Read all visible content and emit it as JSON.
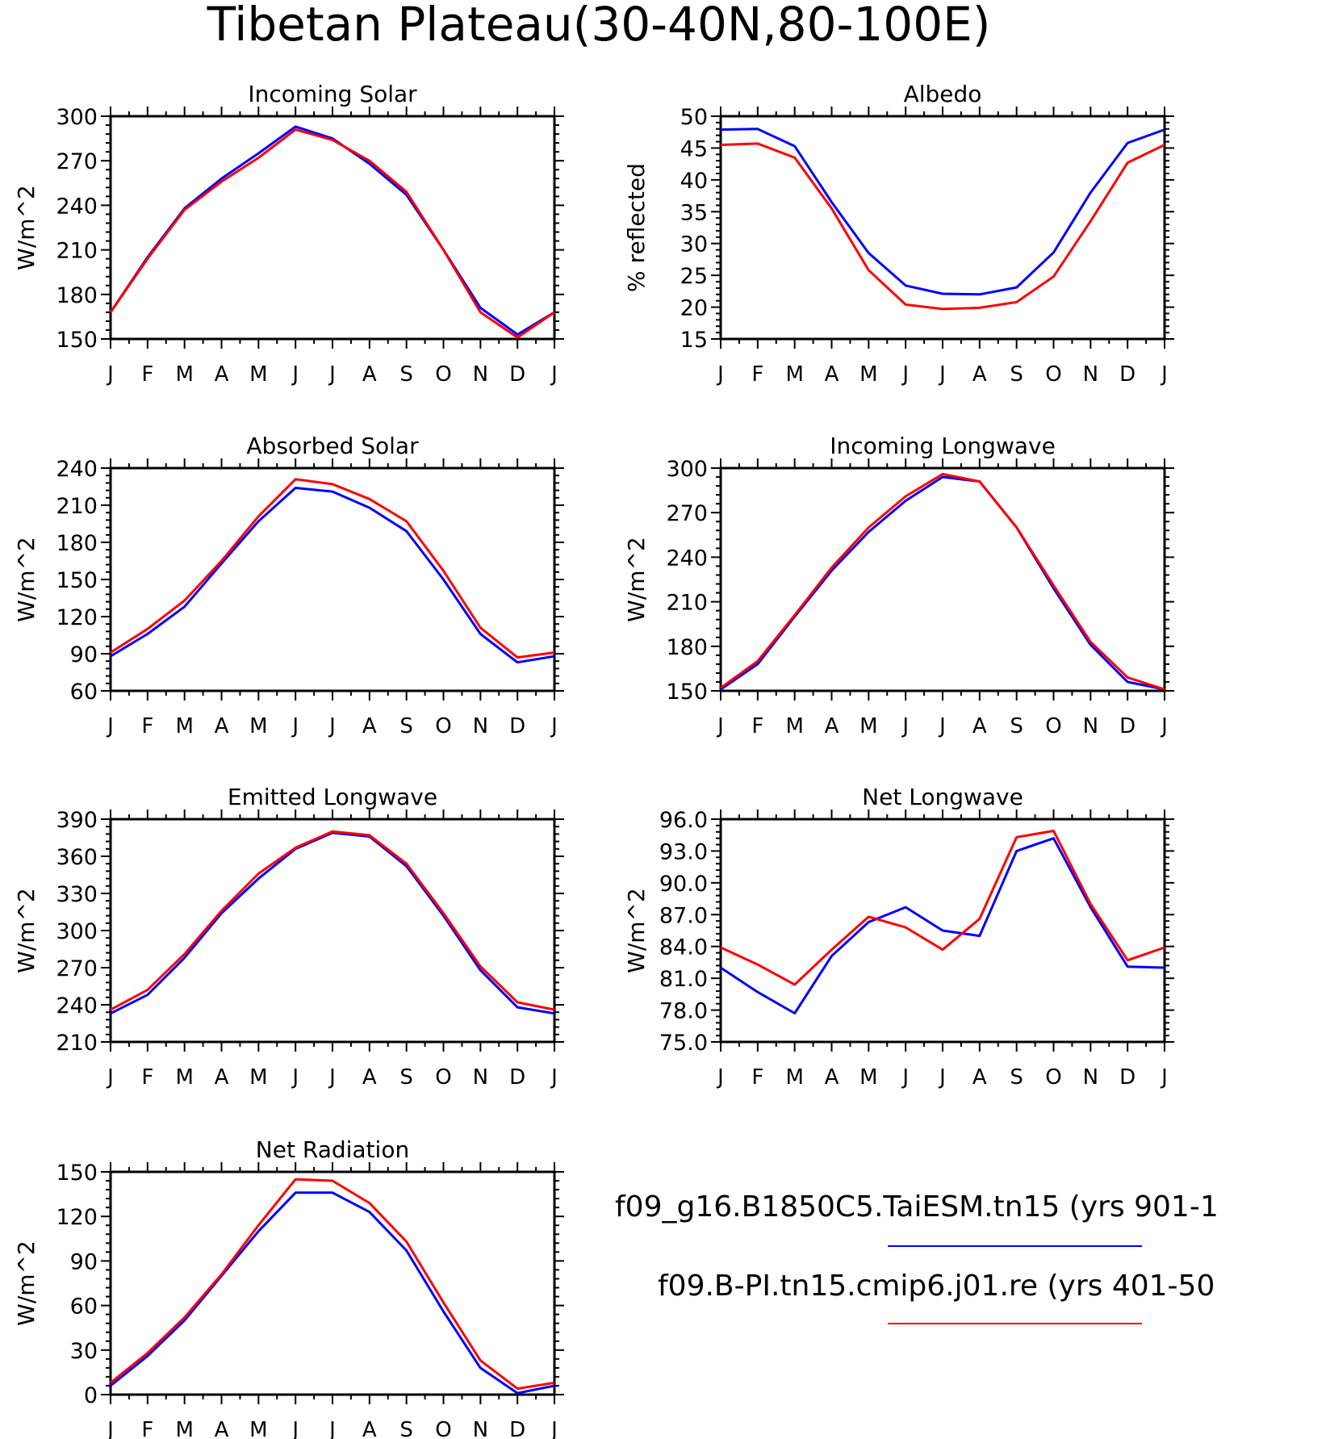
{
  "figure": {
    "title": "Tibetan Plateau(30-40N,80-100E)"
  },
  "legend": {
    "entries": [
      {
        "label": "f09_g16.B1850C5.TaiESM.tn15 (yrs 901-1",
        "color": "#0000ff"
      },
      {
        "label": "f09.B-PI.tn15.cmip6.j01.re (yrs 401-50",
        "color": "#ff0000"
      }
    ]
  },
  "chart_data": [
    {
      "type": "line",
      "title": "Incoming Solar",
      "ylabel": "W/m^2",
      "ylim": [
        150,
        300
      ],
      "yticks": [
        "150",
        "180",
        "210",
        "240",
        "270",
        "300"
      ],
      "categories": [
        "J",
        "F",
        "M",
        "A",
        "M",
        "J",
        "J",
        "A",
        "S",
        "O",
        "N",
        "D",
        "J"
      ],
      "series": [
        {
          "color": "#0000ff",
          "values": [
            168,
            205,
            238,
            258,
            275,
            293,
            285,
            268,
            247,
            210,
            171,
            153,
            168
          ]
        },
        {
          "color": "#ff0000",
          "values": [
            168,
            204,
            237,
            256,
            272,
            291,
            284,
            270,
            249,
            210,
            168,
            151,
            168
          ]
        }
      ]
    },
    {
      "type": "line",
      "title": "Albedo",
      "ylabel": "% reflected",
      "ylim": [
        15,
        50
      ],
      "yticks": [
        "15",
        "20",
        "25",
        "30",
        "35",
        "40",
        "45",
        "50"
      ],
      "categories": [
        "J",
        "F",
        "M",
        "A",
        "M",
        "J",
        "J",
        "A",
        "S",
        "O",
        "N",
        "D",
        "J"
      ],
      "series": [
        {
          "color": "#0000ff",
          "values": [
            47.9,
            48.0,
            45.3,
            36.5,
            28.5,
            23.4,
            22.1,
            22.0,
            23.1,
            28.6,
            38.0,
            45.8,
            47.9
          ]
        },
        {
          "color": "#ff0000",
          "values": [
            45.5,
            45.7,
            43.5,
            35.5,
            25.8,
            20.4,
            19.7,
            19.9,
            20.8,
            24.8,
            33.5,
            42.7,
            45.5
          ]
        }
      ]
    },
    {
      "type": "line",
      "title": "Absorbed Solar",
      "ylabel": "W/m^2",
      "ylim": [
        60,
        240
      ],
      "yticks": [
        "60",
        "90",
        "120",
        "150",
        "180",
        "210",
        "240"
      ],
      "categories": [
        "J",
        "F",
        "M",
        "A",
        "M",
        "J",
        "J",
        "A",
        "S",
        "O",
        "N",
        "D",
        "J"
      ],
      "series": [
        {
          "color": "#0000ff",
          "values": [
            88,
            106,
            128,
            163,
            197,
            224,
            221,
            208,
            189,
            150,
            106,
            83,
            88
          ]
        },
        {
          "color": "#ff0000",
          "values": [
            91,
            110,
            133,
            165,
            201,
            231,
            227,
            215,
            197,
            157,
            111,
            87,
            91
          ]
        }
      ]
    },
    {
      "type": "line",
      "title": "Incoming Longwave",
      "ylabel": "W/m^2",
      "ylim": [
        150,
        300
      ],
      "yticks": [
        "150",
        "180",
        "210",
        "240",
        "270",
        "300"
      ],
      "categories": [
        "J",
        "F",
        "M",
        "A",
        "M",
        "J",
        "J",
        "A",
        "S",
        "O",
        "N",
        "D",
        "J"
      ],
      "series": [
        {
          "color": "#0000ff",
          "values": [
            151,
            168,
            200,
            231,
            257,
            278,
            294,
            291,
            260,
            219,
            181,
            156,
            151
          ]
        },
        {
          "color": "#ff0000",
          "values": [
            152,
            170,
            201,
            233,
            260,
            281,
            296,
            291,
            260,
            221,
            183,
            159,
            151
          ]
        }
      ]
    },
    {
      "type": "line",
      "title": "Emitted Longwave",
      "ylabel": "W/m^2",
      "ylim": [
        210,
        390
      ],
      "yticks": [
        "210",
        "240",
        "270",
        "300",
        "330",
        "360",
        "390"
      ],
      "categories": [
        "J",
        "F",
        "M",
        "A",
        "M",
        "J",
        "J",
        "A",
        "S",
        "O",
        "N",
        "D",
        "J"
      ],
      "series": [
        {
          "color": "#0000ff",
          "values": [
            233,
            248,
            278,
            314,
            342,
            366,
            379,
            376,
            352,
            312,
            268,
            238,
            233
          ]
        },
        {
          "color": "#ff0000",
          "values": [
            236,
            252,
            281,
            316,
            346,
            367,
            380,
            377,
            354,
            314,
            271,
            242,
            236
          ]
        }
      ]
    },
    {
      "type": "line",
      "title": "Net Longwave",
      "ylabel": "W/m^2",
      "ylim": [
        75,
        96
      ],
      "yticks": [
        "75.0",
        "78.0",
        "81.0",
        "84.0",
        "87.0",
        "90.0",
        "93.0",
        "96.0"
      ],
      "categories": [
        "J",
        "F",
        "M",
        "A",
        "M",
        "J",
        "J",
        "A",
        "S",
        "O",
        "N",
        "D",
        "J"
      ],
      "series": [
        {
          "color": "#0000ff",
          "values": [
            82.0,
            79.7,
            77.7,
            83.1,
            86.3,
            87.7,
            85.5,
            85.0,
            93.0,
            94.2,
            87.7,
            82.1,
            82.0
          ]
        },
        {
          "color": "#ff0000",
          "values": [
            83.9,
            82.3,
            80.4,
            83.7,
            86.8,
            85.8,
            83.7,
            86.6,
            94.3,
            94.9,
            88.0,
            82.7,
            83.9
          ]
        }
      ]
    },
    {
      "type": "line",
      "title": "Net Radiation",
      "ylabel": "W/m^2",
      "ylim": [
        0,
        150
      ],
      "yticks": [
        "0",
        "30",
        "60",
        "90",
        "120",
        "150"
      ],
      "categories": [
        "J",
        "F",
        "M",
        "A",
        "M",
        "J",
        "J",
        "A",
        "S",
        "O",
        "N",
        "D",
        "J"
      ],
      "series": [
        {
          "color": "#0000ff",
          "values": [
            6,
            26,
            50,
            80,
            110,
            136,
            136,
            123,
            97,
            56,
            18,
            1,
            6
          ]
        },
        {
          "color": "#ff0000",
          "values": [
            8,
            28,
            52,
            81,
            114,
            145,
            144,
            129,
            103,
            62,
            23,
            4,
            8
          ]
        }
      ]
    }
  ]
}
